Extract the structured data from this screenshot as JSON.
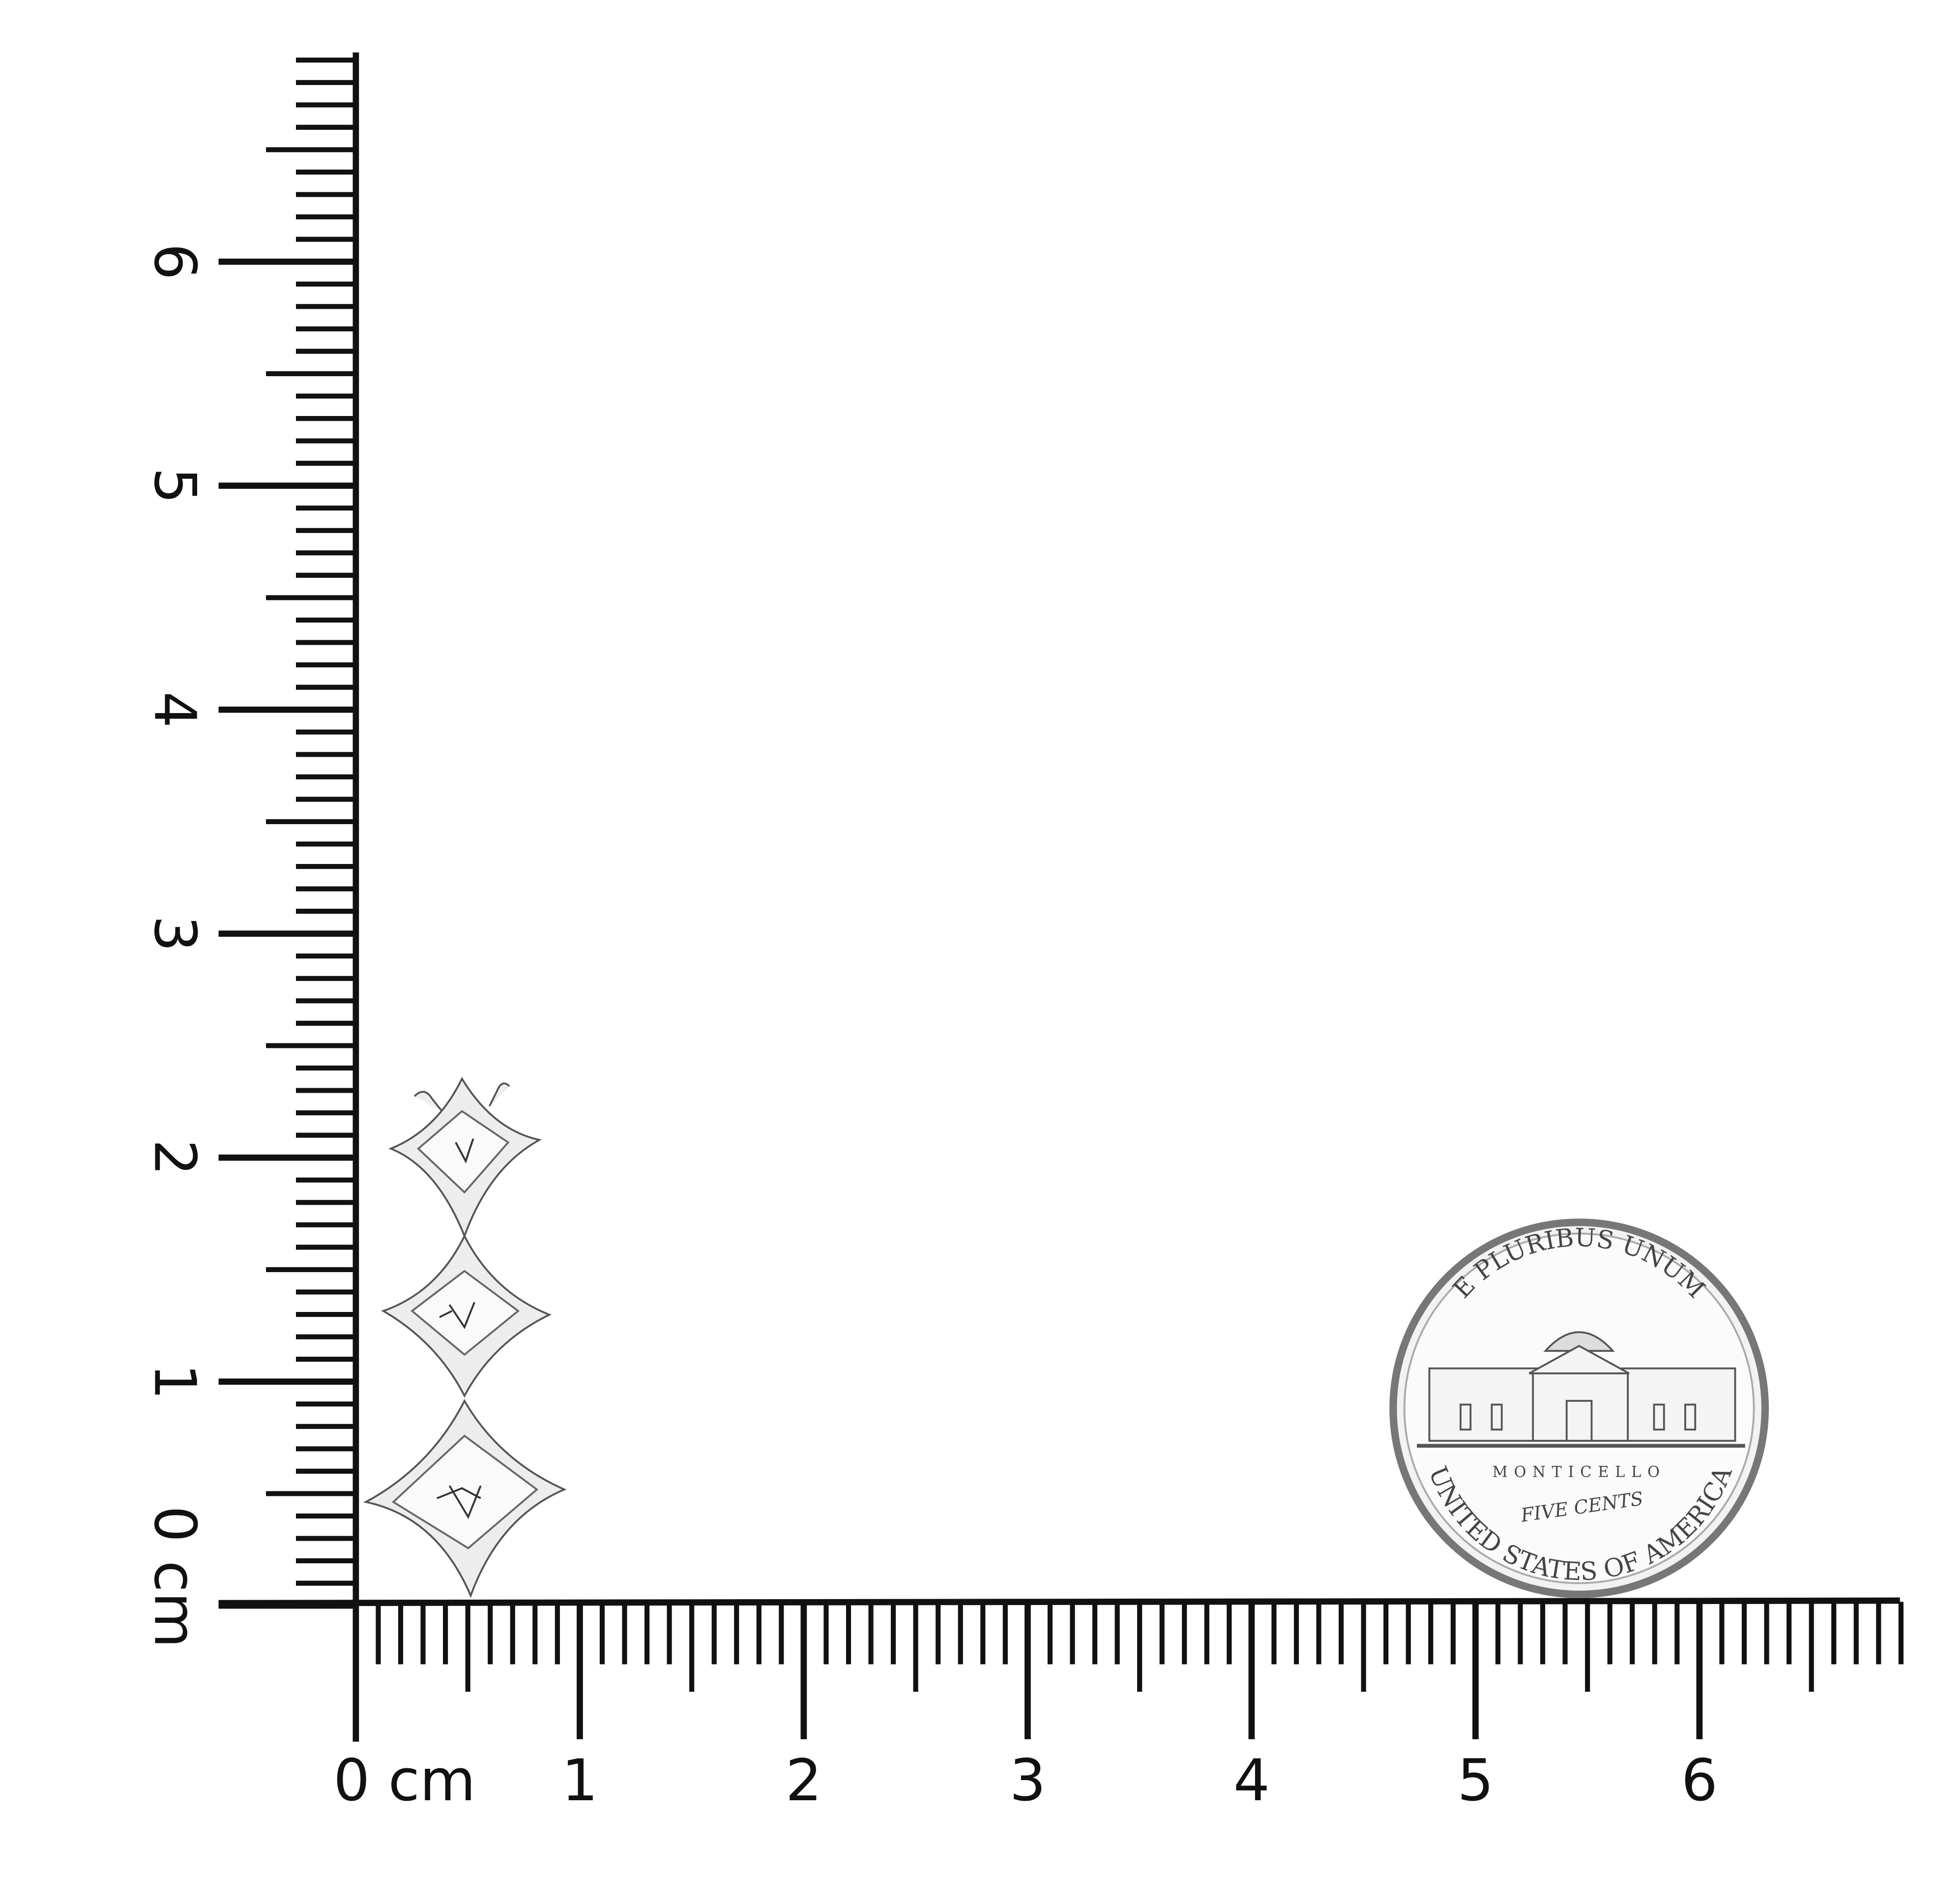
{
  "ruler": {
    "unit": "cm",
    "x_labels": [
      "0 cm",
      "1",
      "2",
      "3",
      "4",
      "5",
      "6"
    ],
    "y_labels": [
      "0 cm",
      "1",
      "2",
      "3",
      "4",
      "5",
      "6"
    ],
    "x_extent_cm": 6.9,
    "y_extent_cm": 6.9,
    "minor_step_mm": 1,
    "color": "#111111"
  },
  "coin": {
    "top_legend": "E PLURIBUS UNUM",
    "building": "MONTICELLO",
    "denomination": "FIVE CENTS",
    "bottom_legend": "UNITED STATES OF AMERICA"
  },
  "earring": {
    "stone_count": 3,
    "metal_color": "#d9d9d9"
  }
}
